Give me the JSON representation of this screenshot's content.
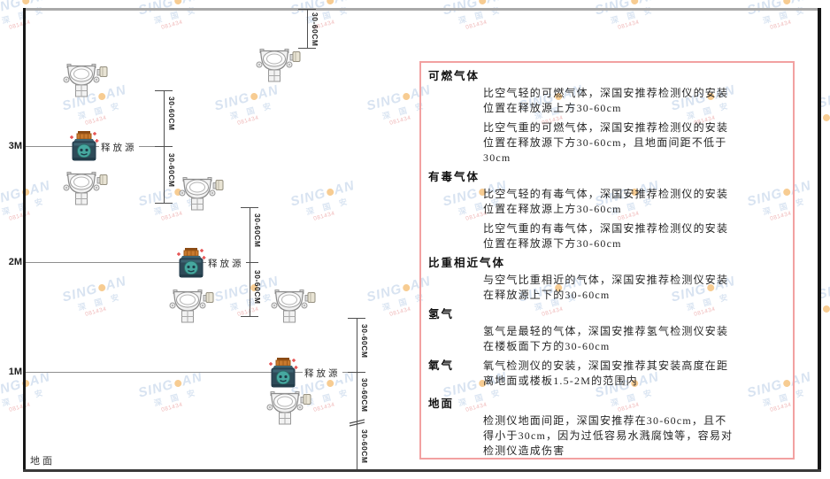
{
  "watermark": {
    "brand_left": "SING",
    "brand_right": "AN",
    "brand_sub": "深 国 安",
    "brand_code": "081434"
  },
  "diagram": {
    "levels": [
      {
        "label": "3M"
      },
      {
        "label": "2M"
      },
      {
        "label": "1M"
      }
    ],
    "ground_label": "地面",
    "release_source_label": "释放源",
    "dim_label": "30-60CM"
  },
  "panel": {
    "sections": [
      {
        "title": "可燃气体",
        "inline": false,
        "paragraphs": [
          "比空气轻的可燃气体，深国安推荐检测仪的安装位置在释放源上方30-60cm",
          "比空气重的可燃气体，深国安推荐检测仪的安装位置在释放源下方30-60cm，且地面间距不低于30cm"
        ]
      },
      {
        "title": "有毒气体",
        "inline": false,
        "paragraphs": [
          "比空气轻的有毒气体，深国安推荐检测仪的安装位置在释放源上方30-60cm",
          "比空气重的有毒气体，深国安推荐检测仪的安装位置在释放源下方30-60cm"
        ]
      },
      {
        "title": "比重相近气体",
        "inline": false,
        "paragraphs": [
          "与空气比重相近的气体，深国安推荐检测仪安装在释放源上下的30-60cm"
        ]
      },
      {
        "title": "氢气",
        "inline": false,
        "paragraphs": [
          "氢气是最轻的气体，深国安推荐氢气检测仪安装在楼板面下方的30-60cm"
        ]
      },
      {
        "title": "氧气",
        "inline": true,
        "paragraphs": [
          "氧气检测仪的安装，深国安推荐其安装高度在距离地面或楼板1.5-2M的范围内"
        ]
      },
      {
        "title": "地面",
        "inline": false,
        "paragraphs": [
          "检测仪地面间距，深国安推荐在30-60cm，且不得小于30cm，因为过低容易水溅腐蚀等，容易对检测仪造成伤害"
        ]
      }
    ]
  },
  "colors": {
    "panel_border": "#f2a1a1",
    "watermark_blue": "#bcd0e8",
    "watermark_orange": "#f2a43a",
    "watermark_red": "#e47f7f",
    "bottle_body": "#2e4a58",
    "bottle_cap": "#c87a2e",
    "bottle_circle": "#46a8a0",
    "line_dark": "#4f4f4f"
  }
}
